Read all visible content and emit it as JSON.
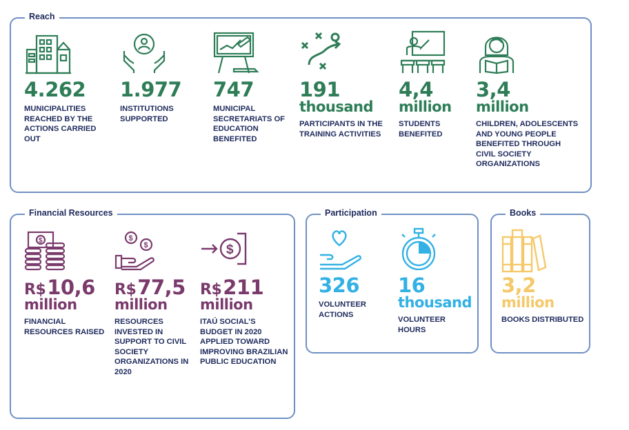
{
  "colors": {
    "reach": "#2e7d57",
    "financial": "#7a3a6c",
    "participation": "#33b1e4",
    "books": "#f5c96a",
    "text": "#1d2a5c",
    "border": "#6f8fc4"
  },
  "reach": {
    "title": "Reach",
    "items": [
      {
        "icon": "buildings-icon",
        "value": "4.262",
        "unit": "",
        "desc": "MUNICIPALITIES REACHED BY THE ACTIONS CARRIED OUT"
      },
      {
        "icon": "hands-person-icon",
        "value": "1.977",
        "unit": "",
        "desc": "INSTITUTIONS SUPPORTED"
      },
      {
        "icon": "presentation-board-icon",
        "value": "747",
        "unit": "",
        "desc": "MUNICIPAL SECRETARIATS OF EDUCATION BENEFITED"
      },
      {
        "icon": "strategy-play-icon",
        "value": "191",
        "unit": "thousand",
        "desc": "PARTICIPANTS IN THE TRAINING ACTIVITIES"
      },
      {
        "icon": "classroom-teacher-icon",
        "value": "4,4",
        "unit": "million",
        "desc": "STUDENTS BENEFITED"
      },
      {
        "icon": "girl-reading-icon",
        "value": "3,4",
        "unit": "million",
        "desc": "CHILDREN, ADOLESCENTS AND YOUNG PEOPLE BENEFITED THROUGH CIVIL SOCIETY ORGANIZATIONS"
      }
    ]
  },
  "financial": {
    "title": "Financial Resources",
    "items": [
      {
        "icon": "money-coins-icon",
        "prefix": "R$",
        "value": "10,6",
        "unit": "million",
        "desc": "FINANCIAL RESOURCES RAISED"
      },
      {
        "icon": "hand-coins-icon",
        "prefix": "R$",
        "value": "77,5",
        "unit": "million",
        "desc": "RESOURCES INVESTED IN SUPPORT TO CIVIL SOCIETY ORGANIZATIONS IN 2020"
      },
      {
        "icon": "arrow-dollar-icon",
        "prefix": "R$",
        "value": "211",
        "unit": "million",
        "desc": "ITAÚ SOCIAL’S BUDGET IN 2020 APPLIED TOWARD IMPROVING BRAZILIAN PUBLIC EDUCATION"
      }
    ]
  },
  "participation": {
    "title": "Participation",
    "items": [
      {
        "icon": "hand-heart-icon",
        "value": "326",
        "unit": "",
        "desc": "VOLUNTEER ACTIONS"
      },
      {
        "icon": "stopwatch-icon",
        "value": "16",
        "unit": "thousand",
        "desc": "VOLUNTEER HOURS"
      }
    ]
  },
  "books": {
    "title": "Books",
    "items": [
      {
        "icon": "books-icon",
        "value": "3,2",
        "unit": "million",
        "desc": "BOOKS DISTRIBUTED"
      }
    ]
  }
}
